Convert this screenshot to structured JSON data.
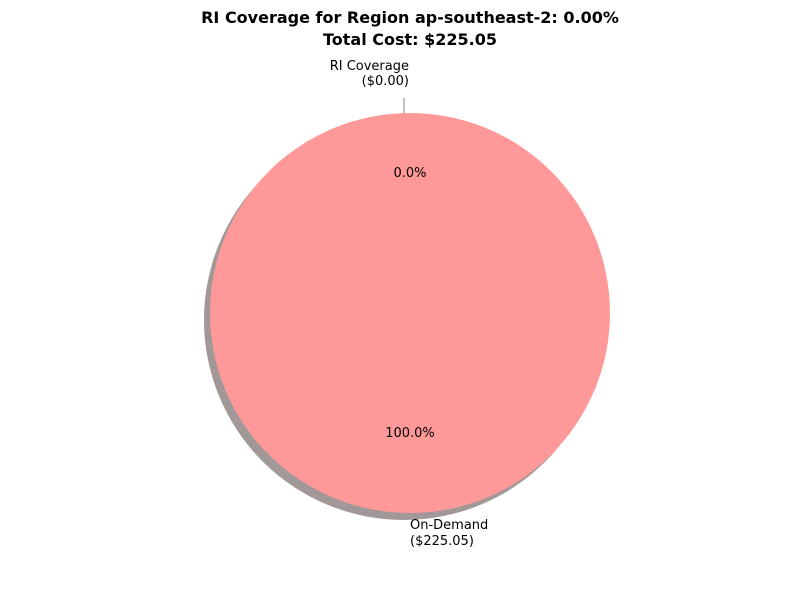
{
  "chart_data": {
    "type": "pie",
    "title": "RI Coverage for Region ap-southeast-2: 0.00%",
    "subtitle": "Total Cost: $225.05",
    "slices": [
      {
        "label_line1": "RI Coverage",
        "label_line2": "($0.00)",
        "value": 0.0,
        "percent_label": "0.0%",
        "color": "#66b3ff"
      },
      {
        "label_line1": "On-Demand",
        "label_line2": "($225.05)",
        "value": 225.05,
        "percent_label": "100.0%",
        "color": "#ff9999"
      }
    ],
    "shadow": true,
    "start_angle_deg": 90
  }
}
